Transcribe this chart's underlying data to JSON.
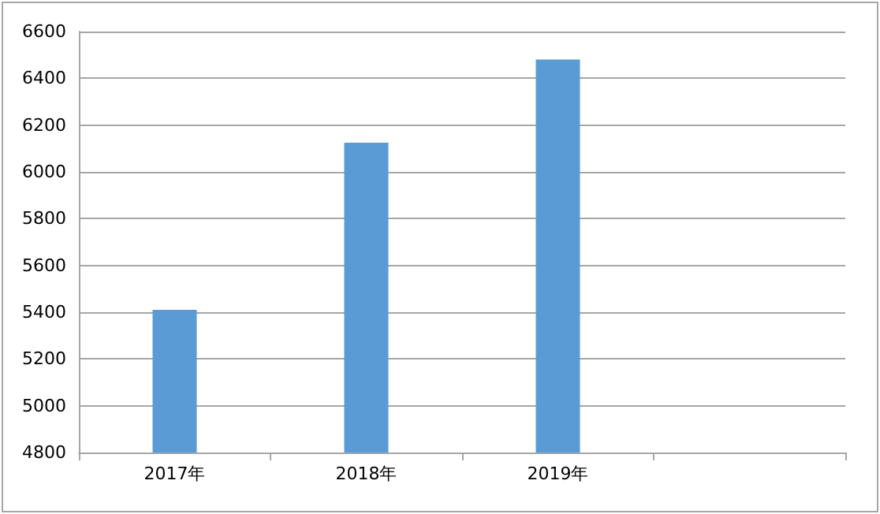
{
  "chart_data": {
    "type": "bar",
    "categories": [
      "2017年",
      "2018年",
      "2019年",
      null
    ],
    "series": [
      {
        "color": "#5b9bd5",
        "values": [
          5410,
          6125,
          6480,
          null
        ]
      }
    ],
    "ylim": [
      4800,
      6600
    ],
    "yticks": [
      4800,
      5000,
      5200,
      5400,
      5600,
      5800,
      6000,
      6200,
      6400,
      6600
    ],
    "grid": "y"
  }
}
